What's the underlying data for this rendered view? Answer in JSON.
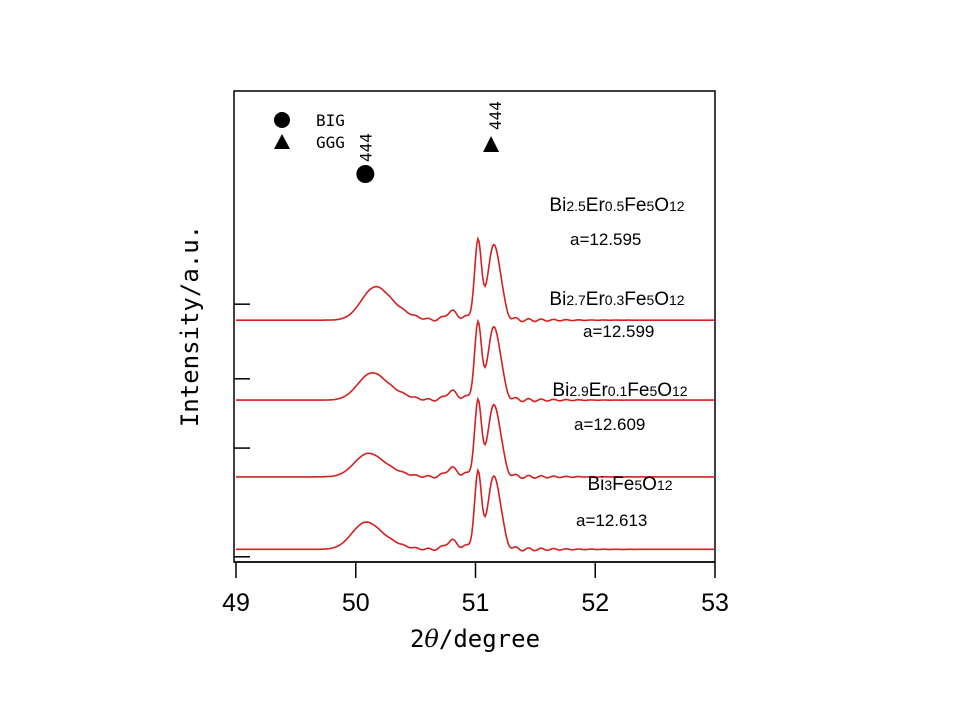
{
  "chart_data": {
    "type": "line",
    "title": "",
    "xlabel_prefix": "2",
    "xlabel_symbol": "θ",
    "xlabel_suffix": "/degree",
    "ylabel": "Intensity/a.u.",
    "xlim": [
      49,
      53
    ],
    "ylim": [
      0,
      4.4
    ],
    "x_ticks": [
      "49",
      "50",
      "51",
      "52",
      "53"
    ],
    "line_color": "#d42020",
    "legend": [
      {
        "marker": "circle",
        "label": "BIG"
      },
      {
        "marker": "triangle",
        "label": "GGG"
      }
    ],
    "peak_markers": [
      {
        "marker": "circle",
        "label": "444",
        "x": 50.08
      },
      {
        "marker": "triangle",
        "label": "444",
        "x": 51.13
      }
    ],
    "series": [
      {
        "name": "Bi2.5Er0.5Fe5O12",
        "composition": [
          {
            "t": "Bi",
            "sub": false
          },
          {
            "t": "2.5",
            "sub": true
          },
          {
            "t": "Er",
            "sub": false
          },
          {
            "t": "0.5",
            "sub": true
          },
          {
            "t": "Fe",
            "sub": false
          },
          {
            "t": "5",
            "sub": true
          },
          {
            "t": "O",
            "sub": false
          },
          {
            "t": "12",
            "sub": true
          }
        ],
        "lattice": "a=12.595",
        "offset": 2.25,
        "broad_center": 50.15,
        "peak1": 51.02,
        "peak2": 51.18,
        "broad_height": 0.27,
        "peak_height": 0.66
      },
      {
        "name": "Bi2.7Er0.3Fe5O12",
        "composition": [
          {
            "t": "Bi",
            "sub": false
          },
          {
            "t": "2.7",
            "sub": true
          },
          {
            "t": "Er",
            "sub": false
          },
          {
            "t": "0.3",
            "sub": true
          },
          {
            "t": "Fe",
            "sub": false
          },
          {
            "t": "5",
            "sub": true
          },
          {
            "t": "O",
            "sub": false
          },
          {
            "t": "12",
            "sub": true
          }
        ],
        "lattice": "a=12.599",
        "offset": 1.5,
        "broad_center": 50.12,
        "peak1": 51.02,
        "peak2": 51.18,
        "broad_height": 0.22,
        "peak_height": 0.64
      },
      {
        "name": "Bi2.9Er0.1Fe5O12",
        "composition": [
          {
            "t": "Bi",
            "sub": false
          },
          {
            "t": "2.9",
            "sub": true
          },
          {
            "t": "Er",
            "sub": false
          },
          {
            "t": "0.1",
            "sub": true
          },
          {
            "t": "Fe",
            "sub": false
          },
          {
            "t": "5",
            "sub": true
          },
          {
            "t": "O",
            "sub": false
          },
          {
            "t": "12",
            "sub": true
          }
        ],
        "lattice": "a=12.609",
        "offset": 0.78,
        "broad_center": 50.09,
        "peak1": 51.02,
        "peak2": 51.18,
        "broad_height": 0.19,
        "peak_height": 0.63
      },
      {
        "name": "Bi3Fe5O12",
        "composition": [
          {
            "t": "Bi",
            "sub": false
          },
          {
            "t": "3",
            "sub": true
          },
          {
            "t": "Fe",
            "sub": false
          },
          {
            "t": "5",
            "sub": true
          },
          {
            "t": "O",
            "sub": false
          },
          {
            "t": "12",
            "sub": true
          }
        ],
        "lattice": "a=12.613",
        "offset": 0.1,
        "broad_center": 50.07,
        "peak1": 51.02,
        "peak2": 51.18,
        "broad_height": 0.22,
        "peak_height": 0.64
      }
    ]
  }
}
